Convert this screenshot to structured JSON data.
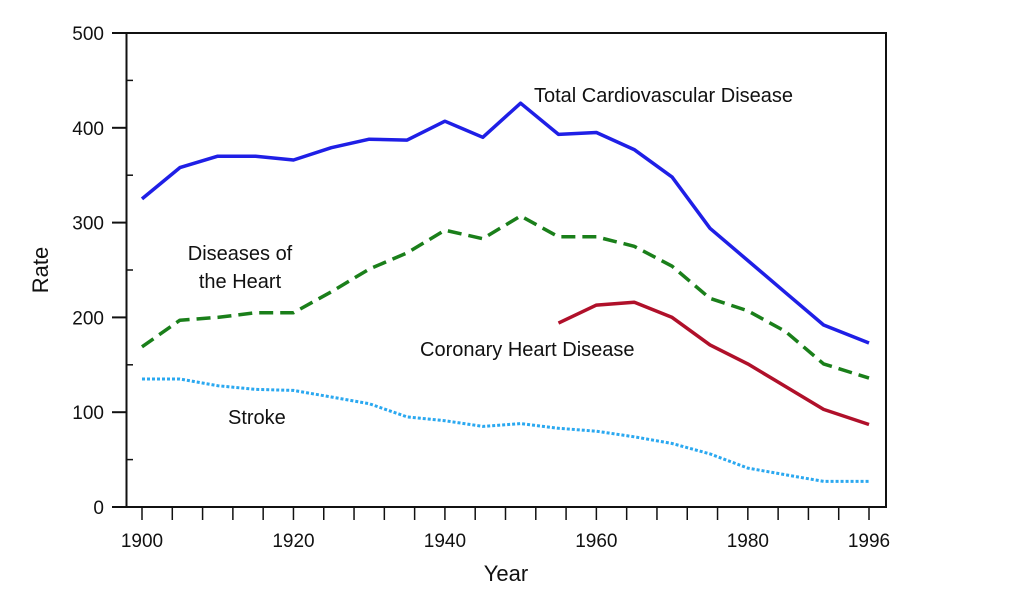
{
  "chart_data": {
    "type": "line",
    "title": "",
    "xlabel": "Year",
    "ylabel": "Rate",
    "xlim": [
      1900,
      1996
    ],
    "ylim": [
      0,
      500
    ],
    "x_ticks": [
      "1900",
      "1920",
      "1940",
      "1960",
      "1980",
      "1996"
    ],
    "y_ticks": [
      "0",
      "100",
      "200",
      "300",
      "400",
      "500"
    ],
    "grid": false,
    "legend": "none (direct labels)",
    "series": [
      {
        "name": "Total Cardiovascular Disease",
        "color": "#1f1fe6",
        "style": "solid",
        "x": [
          1900,
          1905,
          1910,
          1915,
          1920,
          1925,
          1930,
          1935,
          1940,
          1945,
          1950,
          1955,
          1960,
          1965,
          1970,
          1975,
          1980,
          1985,
          1990,
          1996
        ],
        "y": [
          325,
          358,
          370,
          370,
          366,
          379,
          388,
          387,
          407,
          390,
          426,
          393,
          395,
          377,
          348,
          294,
          260,
          226,
          192,
          173
        ]
      },
      {
        "name": "Diseases of the Heart",
        "color": "#1a7f1a",
        "style": "dashed",
        "x": [
          1900,
          1905,
          1910,
          1915,
          1920,
          1925,
          1930,
          1935,
          1940,
          1945,
          1950,
          1955,
          1960,
          1965,
          1970,
          1975,
          1980,
          1985,
          1990,
          1996
        ],
        "y": [
          169,
          197,
          200,
          205,
          205,
          227,
          251,
          268,
          292,
          283,
          307,
          285,
          285,
          275,
          254,
          220,
          207,
          185,
          151,
          136
        ]
      },
      {
        "name": "Coronary Heart Disease",
        "color": "#b0102a",
        "style": "solid",
        "x": [
          1955,
          1960,
          1965,
          1970,
          1975,
          1980,
          1985,
          1990,
          1996
        ],
        "y": [
          194,
          213,
          216,
          200,
          171,
          151,
          127,
          103,
          87
        ]
      },
      {
        "name": "Stroke",
        "color": "#2aa8f0",
        "style": "dotted",
        "x": [
          1900,
          1905,
          1910,
          1915,
          1920,
          1925,
          1930,
          1935,
          1940,
          1945,
          1950,
          1955,
          1960,
          1965,
          1970,
          1975,
          1980,
          1985,
          1990,
          1996
        ],
        "y": [
          135,
          135,
          128,
          124,
          123,
          116,
          109,
          95,
          91,
          85,
          88,
          83,
          80,
          74,
          67,
          56,
          41,
          34,
          27,
          27
        ]
      }
    ],
    "annotations": {
      "total": "Total Cardiovascular Disease",
      "heart_line1": "Diseases of",
      "heart_line2": "the Heart",
      "chd": "Coronary Heart Disease",
      "stroke": "Stroke"
    }
  }
}
